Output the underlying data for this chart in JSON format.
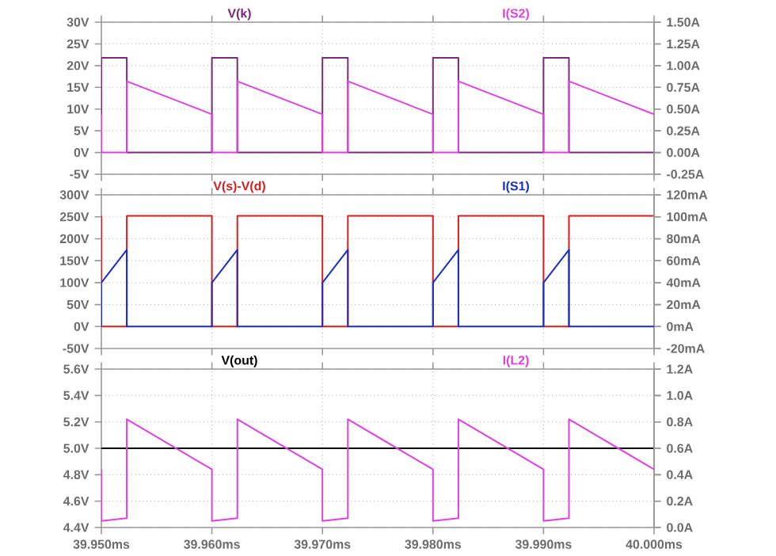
{
  "chart_data": [
    {
      "type": "line",
      "x": [
        39.95,
        39.95,
        39.9523,
        39.9523,
        39.96,
        39.96,
        39.9623,
        39.9623,
        39.97,
        39.97,
        39.9723,
        39.9723,
        39.98,
        39.98,
        39.9823,
        39.9823,
        39.99,
        39.99,
        39.9923,
        39.9923,
        40.0
      ],
      "series": [
        {
          "name": "V(k)",
          "color": "#7a2a7a",
          "values": [
            0,
            21.8,
            21.8,
            0,
            0,
            21.8,
            21.8,
            0,
            0,
            21.8,
            21.8,
            0,
            0,
            21.8,
            21.8,
            0,
            0,
            21.8,
            21.8,
            0,
            0
          ]
        },
        {
          "name": "I(S2)",
          "color": "#e040e0",
          "axis": "y2",
          "values": [
            0.44,
            0,
            0,
            0.82,
            0.44,
            0,
            0,
            0.82,
            0.44,
            0,
            0,
            0.82,
            0.44,
            0,
            0,
            0.82,
            0.44,
            0,
            0,
            0.82,
            0.44
          ]
        }
      ],
      "xlim": [
        39.95,
        40.0
      ],
      "xticks": [
        {
          "value": 39.95,
          "label": null
        },
        {
          "value": 39.96,
          "label": null
        },
        {
          "value": 39.97,
          "label": null
        },
        {
          "value": 39.98,
          "label": null
        },
        {
          "value": 39.99,
          "label": null
        },
        {
          "value": 40.0,
          "label": null
        }
      ],
      "ylim": [
        -5,
        30
      ],
      "yticks": [
        {
          "value": -5,
          "label": "-5V"
        },
        {
          "value": 0,
          "label": "0V"
        },
        {
          "value": 5,
          "label": "5V"
        },
        {
          "value": 10,
          "label": "10V"
        },
        {
          "value": 15,
          "label": "15V"
        },
        {
          "value": 20,
          "label": "20V"
        },
        {
          "value": 25,
          "label": "25V"
        },
        {
          "value": 30,
          "label": "30V"
        }
      ],
      "y2lim": [
        -0.25,
        1.5
      ],
      "y2ticks": [
        {
          "value": -0.25,
          "label": "-0.25A"
        },
        {
          "value": 0,
          "label": "0.00A"
        },
        {
          "value": 0.25,
          "label": "0.25A"
        },
        {
          "value": 0.5,
          "label": "0.50A"
        },
        {
          "value": 0.75,
          "label": "0.75A"
        },
        {
          "value": 1.0,
          "label": "1.00A"
        },
        {
          "value": 1.25,
          "label": "1.25A"
        },
        {
          "value": 1.5,
          "label": "1.50A"
        }
      ],
      "grid": true,
      "tick_labels": "y"
    },
    {
      "type": "line",
      "x": [
        39.95,
        39.95,
        39.9523,
        39.9523,
        39.96,
        39.96,
        39.9623,
        39.9623,
        39.97,
        39.97,
        39.9723,
        39.9723,
        39.98,
        39.98,
        39.9823,
        39.9823,
        39.99,
        39.99,
        39.9923,
        39.9923,
        40.0
      ],
      "series": [
        {
          "name": "V(s)-V(d)",
          "color": "#d42020",
          "values": [
            252,
            0,
            0,
            252,
            252,
            0,
            0,
            252,
            252,
            0,
            0,
            252,
            252,
            0,
            0,
            252,
            252,
            0,
            0,
            252,
            252
          ]
        },
        {
          "name": "I(S1)",
          "color": "#1a2fc0",
          "axis": "y2",
          "values": [
            0,
            40,
            70,
            0,
            0,
            40,
            70,
            0,
            0,
            40,
            70,
            0,
            0,
            40,
            70,
            0,
            0,
            40,
            70,
            0,
            0
          ]
        }
      ],
      "xlim": [
        39.95,
        40.0
      ],
      "xticks": [
        {
          "value": 39.95,
          "label": null
        },
        {
          "value": 39.96,
          "label": null
        },
        {
          "value": 39.97,
          "label": null
        },
        {
          "value": 39.98,
          "label": null
        },
        {
          "value": 39.99,
          "label": null
        },
        {
          "value": 40.0,
          "label": null
        }
      ],
      "ylim": [
        -50,
        300
      ],
      "yticks": [
        {
          "value": -50,
          "label": "-50V"
        },
        {
          "value": 0,
          "label": "0V"
        },
        {
          "value": 50,
          "label": "50V"
        },
        {
          "value": 100,
          "label": "100V"
        },
        {
          "value": 150,
          "label": "150V"
        },
        {
          "value": 200,
          "label": "200V"
        },
        {
          "value": 250,
          "label": "250V"
        },
        {
          "value": 300,
          "label": "300V"
        }
      ],
      "y2lim": [
        -20,
        120
      ],
      "y2ticks": [
        {
          "value": -20,
          "label": "-20mA"
        },
        {
          "value": 0,
          "label": "0mA"
        },
        {
          "value": 20,
          "label": "20mA"
        },
        {
          "value": 40,
          "label": "40mA"
        },
        {
          "value": 60,
          "label": "60mA"
        },
        {
          "value": 80,
          "label": "80mA"
        },
        {
          "value": 100,
          "label": "100mA"
        },
        {
          "value": 120,
          "label": "120mA"
        }
      ],
      "grid": true,
      "tick_labels": "y"
    },
    {
      "type": "line",
      "x": [
        39.95,
        39.95,
        39.9523,
        39.9523,
        39.96,
        39.96,
        39.9623,
        39.9623,
        39.97,
        39.97,
        39.9723,
        39.9723,
        39.98,
        39.98,
        39.9823,
        39.9823,
        39.99,
        39.99,
        39.9923,
        39.9923,
        40.0
      ],
      "series": [
        {
          "name": "V(out)",
          "color": "#000000",
          "x": [
            39.95,
            40.0
          ],
          "values": [
            5.0,
            5.0
          ]
        },
        {
          "name": "I(L2)",
          "color": "#e040e0",
          "axis": "y2",
          "values": [
            0.44,
            0.05,
            0.07,
            0.82,
            0.44,
            0.05,
            0.07,
            0.82,
            0.44,
            0.05,
            0.07,
            0.82,
            0.44,
            0.05,
            0.07,
            0.82,
            0.44,
            0.05,
            0.07,
            0.82,
            0.44
          ]
        }
      ],
      "xlim": [
        39.95,
        40.0
      ],
      "xticks": [
        {
          "value": 39.95,
          "label": "39.950ms"
        },
        {
          "value": 39.96,
          "label": "39.960ms"
        },
        {
          "value": 39.97,
          "label": "39.970ms"
        },
        {
          "value": 39.98,
          "label": "39.980ms"
        },
        {
          "value": 39.99,
          "label": "39.990ms"
        },
        {
          "value": 40.0,
          "label": "40.000ms"
        }
      ],
      "ylim": [
        4.4,
        5.6
      ],
      "yticks": [
        {
          "value": 4.4,
          "label": "4.4V"
        },
        {
          "value": 4.6,
          "label": "4.6V"
        },
        {
          "value": 4.8,
          "label": "4.8V"
        },
        {
          "value": 5.0,
          "label": "5.0V"
        },
        {
          "value": 5.2,
          "label": "5.2V"
        },
        {
          "value": 5.4,
          "label": "5.4V"
        },
        {
          "value": 5.6,
          "label": "5.6V"
        }
      ],
      "y2lim": [
        0,
        1.2
      ],
      "y2ticks": [
        {
          "value": 0,
          "label": "0.0A"
        },
        {
          "value": 0.2,
          "label": "0.2A"
        },
        {
          "value": 0.4,
          "label": "0.4A"
        },
        {
          "value": 0.6,
          "label": "0.6A"
        },
        {
          "value": 0.8,
          "label": "0.8A"
        },
        {
          "value": 1.0,
          "label": "1.0A"
        },
        {
          "value": 1.2,
          "label": "1.2A"
        }
      ],
      "grid": true
    }
  ]
}
